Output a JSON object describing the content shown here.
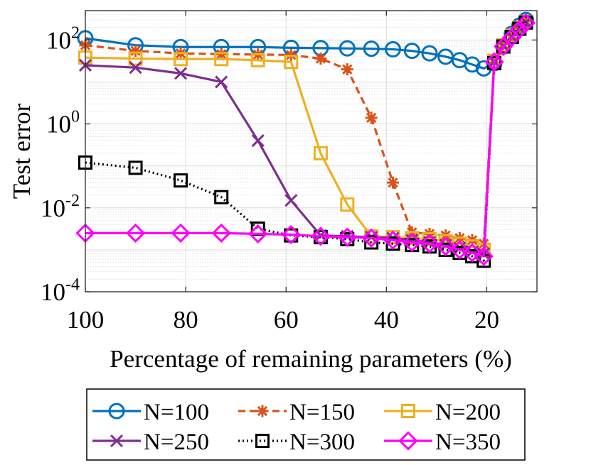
{
  "chart_data": {
    "type": "line",
    "title": "",
    "xlabel": "Percentage of remaining parameters (%)",
    "ylabel": "Test error",
    "xlim": [
      100,
      10
    ],
    "ylim": [
      0.0001,
      500
    ],
    "yscale": "log",
    "x_ticks": [
      100,
      80,
      60,
      40,
      20
    ],
    "x_tick_labels": [
      "100",
      "80",
      "60",
      "40",
      "20"
    ],
    "y_ticks": [
      0.0001,
      0.01,
      1,
      100
    ],
    "y_tick_labels": [
      {
        "base": "10",
        "exp": "-4"
      },
      {
        "base": "10",
        "exp": "-2"
      },
      {
        "base": "10",
        "exp": "0"
      },
      {
        "base": "10",
        "exp": "2"
      }
    ],
    "grid": true,
    "legend_position": "bottom",
    "x": [
      100,
      90,
      81,
      72.9,
      65.6,
      59,
      53.1,
      47.8,
      43,
      38.7,
      34.9,
      31.4,
      28.2,
      25.4,
      22.9,
      20.6,
      18.5,
      16.7,
      15,
      13.5,
      12.2
    ],
    "series": [
      {
        "name": "N=100",
        "color": "#0072BD",
        "dash": "solid",
        "marker": "circle",
        "values": [
          110,
          75,
          68,
          68,
          68,
          65,
          64,
          63,
          62,
          60,
          55,
          48,
          40,
          33,
          26,
          21,
          28,
          70,
          140,
          220,
          300
        ]
      },
      {
        "name": "N=150",
        "color": "#D95319",
        "dash": "dashed",
        "marker": "asterisk",
        "values": [
          75,
          55,
          48,
          46,
          45,
          44,
          36,
          20,
          1.4,
          0.04,
          0.0026,
          0.0024,
          0.0022,
          0.0019,
          0.0017,
          0.0014,
          35,
          80,
          130,
          200,
          280
        ]
      },
      {
        "name": "N=200",
        "color": "#EDB120",
        "dash": "solid",
        "marker": "square",
        "values": [
          38,
          36,
          35,
          35,
          33,
          30,
          0.2,
          0.012,
          0.0021,
          0.002,
          0.0019,
          0.0018,
          0.0016,
          0.0014,
          0.0012,
          0.001,
          32,
          75,
          125,
          195,
          270
        ]
      },
      {
        "name": "N=250",
        "color": "#7E2F8E",
        "dash": "solid",
        "marker": "x",
        "values": [
          25,
          22,
          16,
          10,
          0.4,
          0.015,
          0.0022,
          0.0021,
          0.002,
          0.0019,
          0.0017,
          0.0015,
          0.0013,
          0.0011,
          0.0009,
          0.0008,
          30,
          72,
          120,
          190,
          265
        ]
      },
      {
        "name": "N=300",
        "color": "#000000",
        "dash": "dotted",
        "marker": "square",
        "values": [
          0.12,
          0.09,
          0.045,
          0.018,
          0.0032,
          0.0022,
          0.002,
          0.0018,
          0.0015,
          0.0014,
          0.0013,
          0.0012,
          0.001,
          0.00085,
          0.0007,
          0.00055,
          28,
          70,
          118,
          185,
          260
        ]
      },
      {
        "name": "N=350",
        "color": "#FF00FF",
        "dash": "solid",
        "marker": "diamond",
        "values": [
          0.0025,
          0.0025,
          0.0025,
          0.0025,
          0.0024,
          0.0023,
          0.0021,
          0.002,
          0.0019,
          0.0017,
          0.0015,
          0.0014,
          0.0012,
          0.001,
          0.00085,
          0.0007,
          30,
          70,
          115,
          180,
          255
        ]
      }
    ]
  }
}
